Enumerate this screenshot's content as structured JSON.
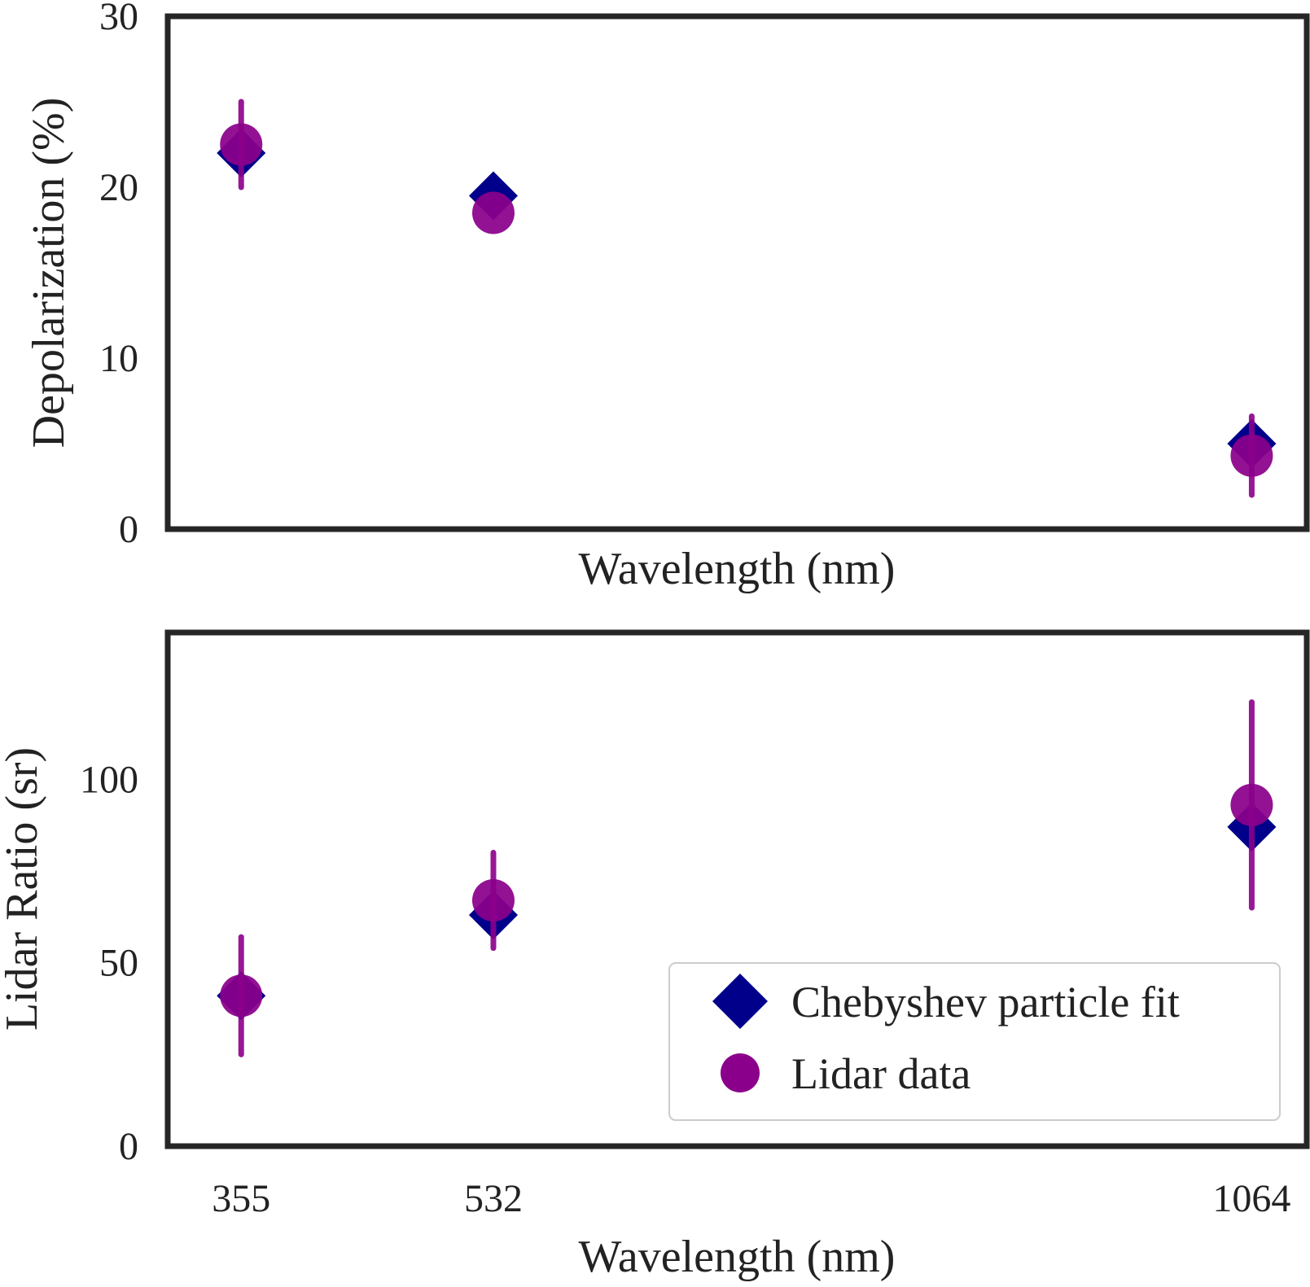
{
  "colors": {
    "fit": "#00008b",
    "data": "#8b008b",
    "frame": "#262626"
  },
  "legend": {
    "fit_label": "Chebyshev particle fit",
    "data_label": "Lidar data",
    "placement": "lower-right",
    "fit_marker": "diamond",
    "data_marker": "circle"
  },
  "chart_data": [
    {
      "type": "scatter",
      "xlabel": "Wavelength (nm)",
      "ylabel": "Depolarization (%)",
      "ylim": [
        0,
        30
      ],
      "yticks": [
        "0",
        "10",
        "20",
        "30"
      ],
      "show_xticks": false,
      "x": [
        355,
        532,
        1064
      ],
      "series": [
        {
          "name": "Chebyshev particle fit",
          "marker": "diamond",
          "values": [
            22.0,
            19.5,
            5.0
          ]
        },
        {
          "name": "Lidar data",
          "marker": "circle",
          "values": [
            22.5,
            18.5,
            4.3
          ],
          "error": [
            2.5,
            0.0,
            2.3
          ]
        }
      ]
    },
    {
      "type": "scatter",
      "xlabel": "Wavelength (nm)",
      "ylabel": "Lidar Ratio (sr)",
      "ylim": [
        0,
        140
      ],
      "yticks": [
        "0",
        "50",
        "100"
      ],
      "xticks": [
        "355",
        "532",
        "1064"
      ],
      "show_xticks": true,
      "x": [
        355,
        532,
        1064
      ],
      "series": [
        {
          "name": "Chebyshev particle fit",
          "marker": "diamond",
          "values": [
            41,
            63,
            87
          ]
        },
        {
          "name": "Lidar data",
          "marker": "circle",
          "values": [
            41,
            67,
            93
          ],
          "error": [
            16,
            13,
            28
          ]
        }
      ]
    }
  ]
}
